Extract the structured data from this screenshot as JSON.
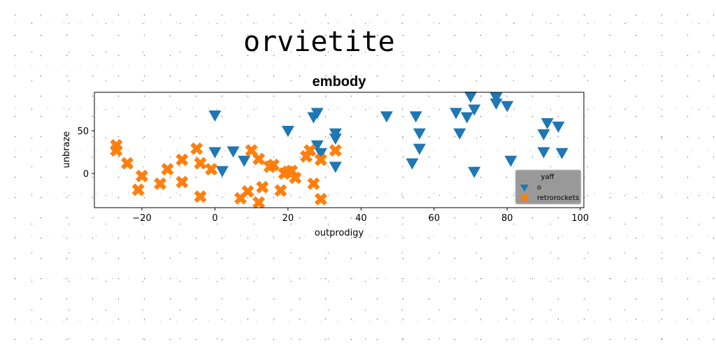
{
  "page": {
    "heading": "orvietite"
  },
  "colors": {
    "series_o": "#1f77b4",
    "series_retrorockets": "#ff7f0e",
    "legend_background": "#999999"
  },
  "chart_data": {
    "type": "scatter",
    "title": "embody",
    "xlabel": "outprodigy",
    "ylabel": "unbraze",
    "xlim": [
      -33,
      101
    ],
    "ylim": [
      -40,
      95
    ],
    "xticks": [
      -20,
      0,
      20,
      40,
      60,
      80,
      100
    ],
    "yticks": [
      0,
      50
    ],
    "grid": false,
    "legend": {
      "title": "yaff",
      "position": "lower-right"
    },
    "series": [
      {
        "name": "o",
        "marker": "triangle-down",
        "color": "#1f77b4",
        "points": [
          [
            0,
            68
          ],
          [
            0,
            25
          ],
          [
            2,
            3
          ],
          [
            5,
            26
          ],
          [
            8,
            15
          ],
          [
            20,
            50
          ],
          [
            27,
            66
          ],
          [
            28,
            71
          ],
          [
            28,
            33
          ],
          [
            29,
            24
          ],
          [
            33,
            47
          ],
          [
            33,
            41
          ],
          [
            33,
            8
          ],
          [
            47,
            67
          ],
          [
            54,
            12
          ],
          [
            55,
            67
          ],
          [
            56,
            47
          ],
          [
            56,
            29
          ],
          [
            66,
            71
          ],
          [
            67,
            47
          ],
          [
            69,
            66
          ],
          [
            70,
            90
          ],
          [
            71,
            75
          ],
          [
            71,
            2
          ],
          [
            77,
            89
          ],
          [
            77,
            82
          ],
          [
            80,
            79
          ],
          [
            81,
            15
          ],
          [
            90,
            46
          ],
          [
            90,
            25
          ],
          [
            91,
            59
          ],
          [
            94,
            55
          ],
          [
            95,
            24
          ]
        ]
      },
      {
        "name": "retrorockets",
        "marker": "x-filled",
        "color": "#ff7f0e",
        "points": [
          [
            -27,
            33
          ],
          [
            -27,
            27
          ],
          [
            -24,
            12
          ],
          [
            -21,
            -19
          ],
          [
            -20,
            -3
          ],
          [
            -15,
            -12
          ],
          [
            -13,
            5
          ],
          [
            -9,
            -10
          ],
          [
            -9,
            16
          ],
          [
            -5,
            29
          ],
          [
            -4,
            12
          ],
          [
            -4,
            -27
          ],
          [
            -1,
            5
          ],
          [
            7,
            -29
          ],
          [
            9,
            -21
          ],
          [
            10,
            27
          ],
          [
            12,
            -34
          ],
          [
            12,
            17
          ],
          [
            13,
            -16
          ],
          [
            15,
            8
          ],
          [
            16,
            10
          ],
          [
            18,
            -20
          ],
          [
            19,
            0
          ],
          [
            20,
            2
          ],
          [
            21,
            3
          ],
          [
            22,
            -5
          ],
          [
            25,
            20
          ],
          [
            26,
            27
          ],
          [
            27,
            -12
          ],
          [
            29,
            16
          ],
          [
            29,
            -30
          ],
          [
            33,
            27
          ]
        ]
      }
    ]
  }
}
